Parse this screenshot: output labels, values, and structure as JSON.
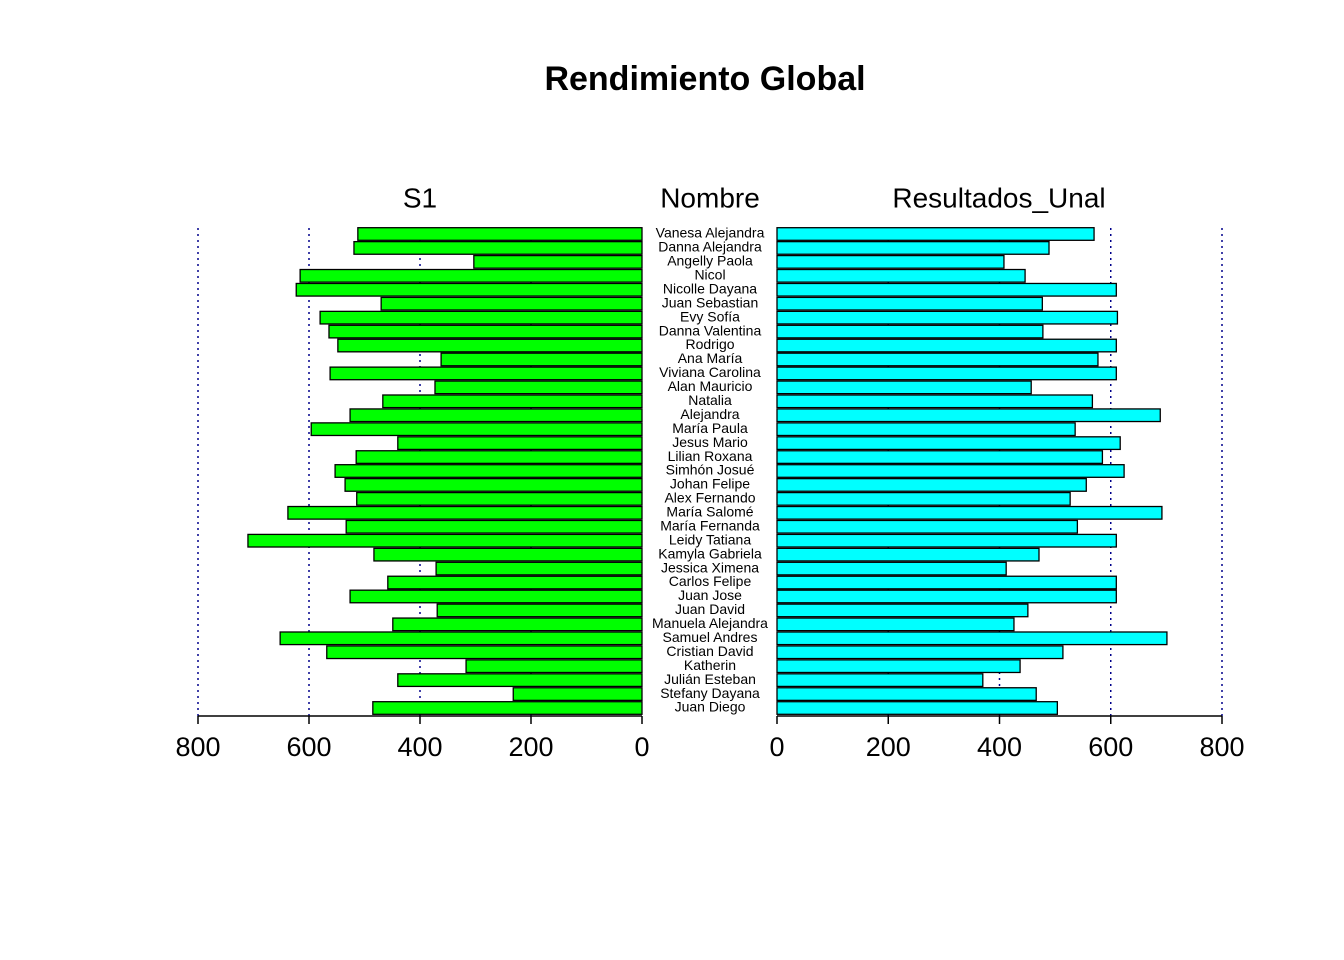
{
  "chart_data": {
    "type": "pyramid",
    "title": "Rendimiento Global",
    "category_label": "Nombre",
    "categories": [
      "Vanesa Alejandra",
      "Danna Alejandra",
      "Angelly Paola",
      "Nicol",
      "Nicolle Dayana",
      "Juan Sebastian",
      "Evy Sofía",
      "Danna Valentina",
      "Rodrigo",
      "Ana María",
      "Viviana Carolina",
      "Alan Mauricio",
      "Natalia",
      "Alejandra",
      "María Paula",
      "Jesus Mario",
      "Lilian Roxana",
      "Simhón Josué",
      "Johan Felipe",
      "Alex Fernando",
      "María Salomé",
      "María Fernanda",
      "Leidy Tatiana",
      "Kamyla Gabriela",
      "Jessica Ximena",
      "Carlos Felipe",
      "Juan Jose",
      "Juan David",
      "Manuela Alejandra",
      "Samuel Andres",
      "Cristian David",
      "Katherin",
      "Julián Esteban",
      "Stefany Dayana",
      "Juan Diego"
    ],
    "series": [
      {
        "name": "S1",
        "color": "#00ff00",
        "values": [
          512,
          519,
          303,
          616,
          623,
          470,
          580,
          564,
          548,
          362,
          562,
          373,
          467,
          526,
          596,
          440,
          515,
          553,
          535,
          514,
          638,
          533,
          710,
          483,
          371,
          458,
          526,
          369,
          449,
          652,
          568,
          317,
          440,
          232,
          485
        ]
      },
      {
        "name": "Resultados_Unal",
        "color": "#00ffff",
        "values": [
          570,
          489,
          408,
          446,
          610,
          477,
          612,
          478,
          610,
          577,
          610,
          457,
          567,
          689,
          536,
          617,
          585,
          624,
          556,
          527,
          692,
          540,
          610,
          471,
          412,
          610,
          610,
          451,
          426,
          701,
          514,
          437,
          370,
          466,
          504
        ]
      }
    ],
    "xlim": [
      0,
      800
    ],
    "xticks": [
      0,
      200,
      400,
      600,
      800
    ],
    "grid": true,
    "grid_color": "#00008b"
  }
}
